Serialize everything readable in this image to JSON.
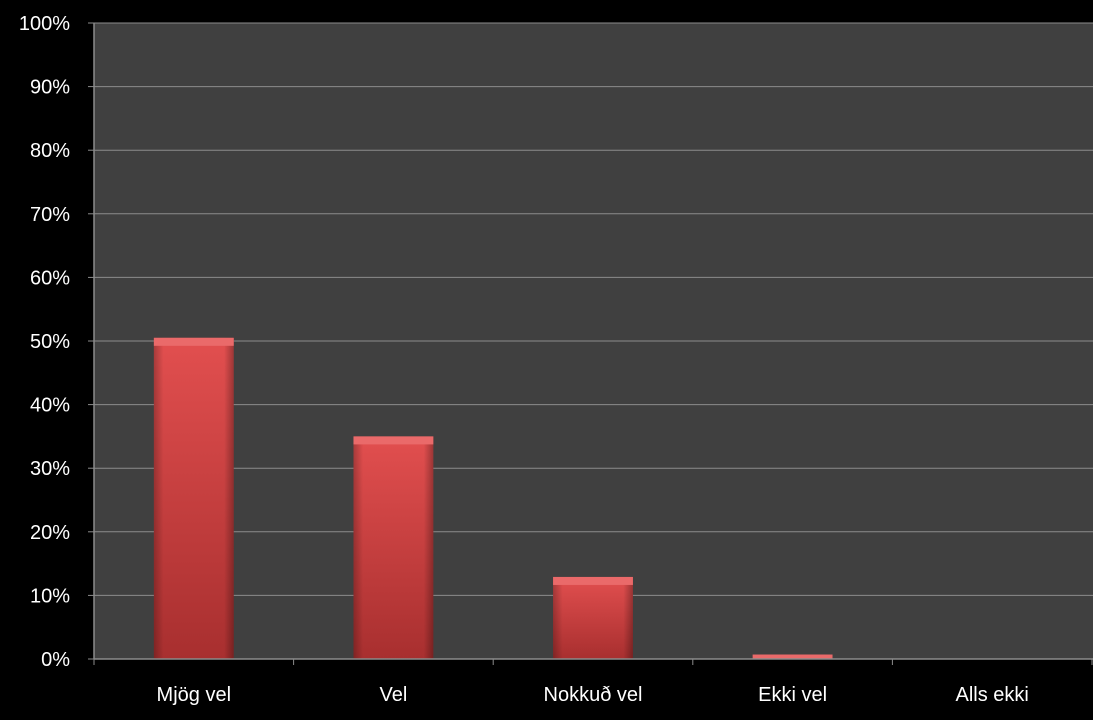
{
  "chart_data": {
    "type": "bar",
    "categories": [
      "Mjög vel",
      "Vel",
      "Nokkuð vel",
      "Ekki vel",
      "Alls ekki"
    ],
    "values": [
      50.5,
      35,
      12.9,
      0.7,
      0
    ],
    "y_ticks": [
      "0%",
      "10%",
      "20%",
      "30%",
      "40%",
      "50%",
      "60%",
      "70%",
      "80%",
      "90%",
      "100%"
    ],
    "ylim": [
      0,
      100
    ],
    "grid": true,
    "legend": "none",
    "title": "",
    "xlabel": "",
    "ylabel": ""
  },
  "colors": {
    "page_background": "#000000",
    "plot_background": "#404040",
    "gridline": "#8c8c8c",
    "bar_fill": "#d94a4a",
    "bar_highlight": "#ea6a6a",
    "bar_shadow": "#8e2020",
    "text": "#ffffff"
  }
}
